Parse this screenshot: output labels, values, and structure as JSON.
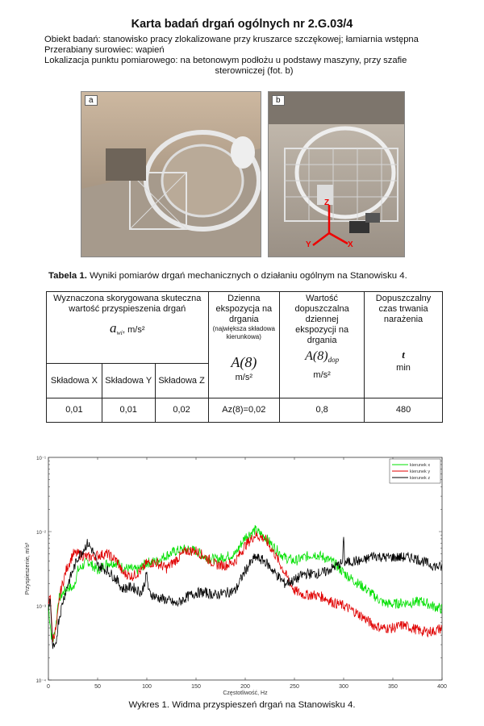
{
  "header": {
    "title": "Karta badań drgań ogólnych nr 2.G.03/4",
    "object": "Obiekt badań: stanowisko pracy zlokalizowane przy kruszarce szczękowej; łamiarnia wstępna",
    "material": "Przerabiany surowiec: wapień",
    "location_line1": "Lokalizacja punktu pomiarowego: na betonowym podłożu u podstawy maszyny, przy szafie",
    "location_line2": "sterowniczej (fot. b)"
  },
  "photos": [
    {
      "label": "a"
    },
    {
      "label": "b",
      "axes": [
        "Z",
        "Y",
        "X"
      ]
    }
  ],
  "table": {
    "caption_bold": "Tabela 1.",
    "caption": " Wyniki pomiarów drgań mechanicznych o działaniu ogólnym na Stanowisku 4.",
    "col1_header": "Wyznaczona skorygowana skuteczna wartość przyspieszenia drgań",
    "col1_symbol": "a",
    "col1_subscript": "wi",
    "col1_unit": ", m/s²",
    "col2_header": "Dzienna ekspozycja na drgania",
    "col2_note": "(największa składowa kierunkowa)",
    "col2_symbol": "A(8)",
    "col2_unit": "m/s²",
    "col3_header": "Wartość dopuszczalna dziennej ekspozycji na drgania",
    "col3_symbol": "A(8)",
    "col3_subscript": "dop",
    "col3_unit": "m/s²",
    "col4_header": "Dopuszczalny czas trwania narażenia",
    "col4_symbol": "t",
    "col4_unit": "min",
    "sub_headers": [
      "Składowa X",
      "Składowa Y",
      "Składowa Z"
    ],
    "row": [
      "0,01",
      "0,01",
      "0,02",
      "Az(8)=0,02",
      "0,8",
      "480"
    ]
  },
  "chart_data": {
    "type": "line",
    "title": "",
    "xlabel": "Częstotliwość, Hz",
    "ylabel": "Przyspieszenie, m/s²",
    "xlim": [
      0,
      400
    ],
    "ylim": [
      0.0001,
      0.1
    ],
    "yscale": "log",
    "grid": false,
    "legend_placement": "top-right",
    "xticks": [
      "0",
      "50",
      "100",
      "150",
      "200",
      "250",
      "300",
      "350",
      "400"
    ],
    "yticks": [
      "10⁻⁴",
      "10⁻³",
      "10⁻²",
      "10⁻¹"
    ],
    "series": [
      {
        "name": "kierunek x",
        "color": "#00e000",
        "x": [
          0,
          3,
          5,
          8,
          10,
          15,
          20,
          25,
          30,
          40,
          50,
          60,
          70,
          75,
          90,
          100,
          110,
          120,
          130,
          140,
          150,
          160,
          170,
          180,
          190,
          200,
          210,
          220,
          230,
          240,
          250,
          260,
          270,
          280,
          290,
          300,
          310,
          320,
          330,
          340,
          350,
          360,
          370,
          380,
          390,
          400
        ],
        "y": [
          0.001,
          0.0004,
          0.00035,
          0.0006,
          0.0012,
          0.0015,
          0.0018,
          0.0017,
          0.003,
          0.004,
          0.003,
          0.0038,
          0.0038,
          0.0033,
          0.003,
          0.0038,
          0.004,
          0.0048,
          0.0055,
          0.0058,
          0.0055,
          0.0045,
          0.0042,
          0.0046,
          0.005,
          0.0085,
          0.0105,
          0.0085,
          0.006,
          0.0045,
          0.004,
          0.0045,
          0.005,
          0.0045,
          0.0038,
          0.0028,
          0.0022,
          0.0018,
          0.0014,
          0.0011,
          0.00105,
          0.0011,
          0.0011,
          0.00115,
          0.001,
          0.0009
        ]
      },
      {
        "name": "kierunek y",
        "color": "#e00000",
        "x": [
          0,
          2,
          4,
          8,
          12,
          18,
          25,
          30,
          40,
          50,
          60,
          70,
          75,
          85,
          95,
          100,
          110,
          120,
          130,
          140,
          150,
          160,
          170,
          180,
          190,
          200,
          210,
          220,
          230,
          240,
          250,
          260,
          270,
          280,
          290,
          300,
          310,
          320,
          330,
          340,
          350,
          360,
          370,
          380,
          390,
          400
        ],
        "y": [
          0.001,
          0.0015,
          0.00035,
          0.0005,
          0.0015,
          0.003,
          0.005,
          0.005,
          0.0045,
          0.0048,
          0.005,
          0.004,
          0.0028,
          0.0025,
          0.003,
          0.0038,
          0.0038,
          0.0032,
          0.0042,
          0.0055,
          0.0055,
          0.0045,
          0.0036,
          0.0035,
          0.004,
          0.0065,
          0.009,
          0.008,
          0.005,
          0.0028,
          0.0016,
          0.0014,
          0.0014,
          0.0013,
          0.0011,
          0.001,
          0.00085,
          0.0007,
          0.00055,
          0.0005,
          0.0005,
          0.00055,
          0.0005,
          0.00045,
          0.00045,
          0.0005
        ]
      },
      {
        "name": "kierunek z",
        "color": "#000000",
        "x": [
          0,
          2,
          4,
          7,
          10,
          15,
          20,
          30,
          40,
          45,
          50,
          60,
          70,
          75,
          85,
          95,
          100,
          102,
          110,
          120,
          130,
          140,
          150,
          160,
          170,
          180,
          190,
          200,
          210,
          220,
          230,
          240,
          250,
          260,
          270,
          280,
          290,
          299,
          300,
          301,
          310,
          320,
          330,
          340,
          350,
          360,
          370,
          380,
          390,
          400
        ],
        "y": [
          0.0009,
          0.0013,
          0.00028,
          0.00026,
          0.0006,
          0.0012,
          0.002,
          0.0045,
          0.007,
          0.0055,
          0.0035,
          0.003,
          0.0022,
          0.0017,
          0.0018,
          0.0015,
          0.0027,
          0.0015,
          0.0013,
          0.0012,
          0.00105,
          0.0013,
          0.0015,
          0.0015,
          0.0014,
          0.0015,
          0.0016,
          0.003,
          0.0045,
          0.004,
          0.0028,
          0.002,
          0.0022,
          0.0027,
          0.0027,
          0.0028,
          0.0033,
          0.0038,
          0.0095,
          0.0038,
          0.004,
          0.004,
          0.0048,
          0.0045,
          0.0045,
          0.0045,
          0.0045,
          0.004,
          0.0035,
          0.0033
        ]
      }
    ]
  },
  "chart_caption": "Wykres 1. Widma przyspieszeń drgań na Stanowisku 4."
}
